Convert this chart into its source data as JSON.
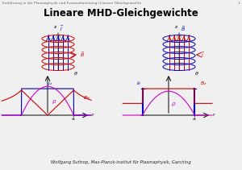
{
  "title": "Lineare MHD-Gleichgewichte",
  "header_left": "Einführung in die Plasmaphysik und Fusionsforschung I",
  "header_center": "Lineare Gleichgewichte",
  "header_page": "1",
  "footer": "Wolfgang Suttrop, Max-Planck-Institut für Plasmaphysik, Garching",
  "bg_color": "#f0f0f0",
  "red": "#cc0000",
  "blue": "#0000bb",
  "magenta": "#cc00cc",
  "black": "#000000",
  "gray": "#666666"
}
